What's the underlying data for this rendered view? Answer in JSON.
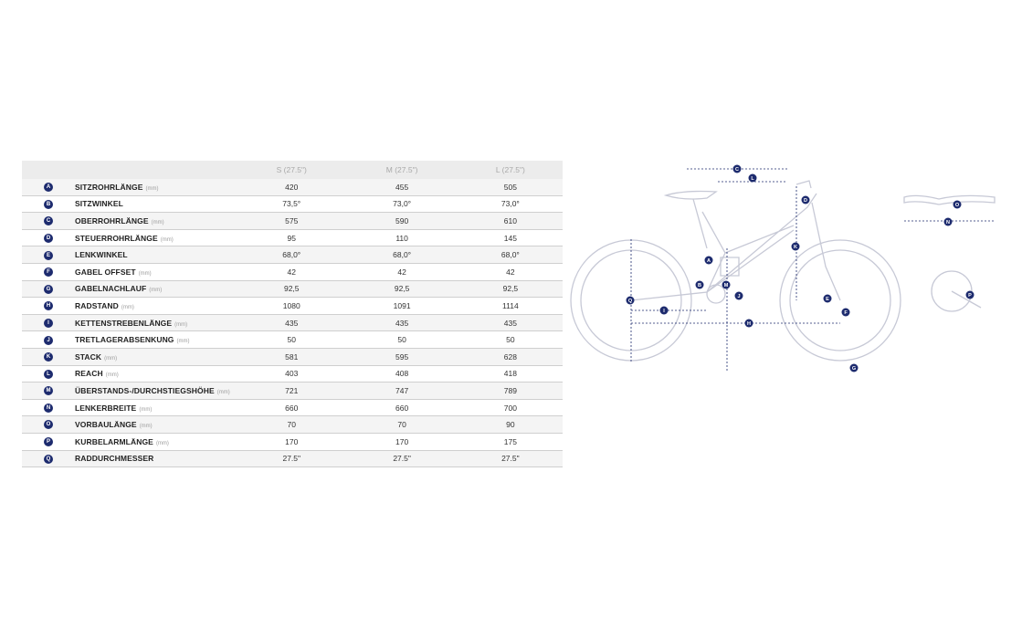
{
  "table": {
    "headers": [
      "",
      "",
      "S (27.5\")",
      "M (27.5\")",
      "L (27.5\")"
    ],
    "rows": [
      {
        "key": "A",
        "label": "SITZROHRLÄNGE",
        "unit": "(mm)",
        "values": [
          "420",
          "455",
          "505"
        ]
      },
      {
        "key": "B",
        "label": "SITZWINKEL",
        "unit": "",
        "values": [
          "73,5°",
          "73,0°",
          "73,0°"
        ]
      },
      {
        "key": "C",
        "label": "OBERROHRLÄNGE",
        "unit": "(mm)",
        "values": [
          "575",
          "590",
          "610"
        ]
      },
      {
        "key": "D",
        "label": "STEUERROHRLÄNGE",
        "unit": "(mm)",
        "values": [
          "95",
          "110",
          "145"
        ]
      },
      {
        "key": "E",
        "label": "LENKWINKEL",
        "unit": "",
        "values": [
          "68,0°",
          "68,0°",
          "68,0°"
        ]
      },
      {
        "key": "F",
        "label": "GABEL OFFSET",
        "unit": "(mm)",
        "values": [
          "42",
          "42",
          "42"
        ]
      },
      {
        "key": "G",
        "label": "GABELNACHLAUF",
        "unit": "(mm)",
        "values": [
          "92,5",
          "92,5",
          "92,5"
        ]
      },
      {
        "key": "H",
        "label": "RADSTAND",
        "unit": "(mm)",
        "values": [
          "1080",
          "1091",
          "1114"
        ]
      },
      {
        "key": "I",
        "label": "KETTENSTREBENLÄNGE",
        "unit": "(mm)",
        "values": [
          "435",
          "435",
          "435"
        ]
      },
      {
        "key": "J",
        "label": "TRETLAGERABSENKUNG",
        "unit": "(mm)",
        "values": [
          "50",
          "50",
          "50"
        ]
      },
      {
        "key": "K",
        "label": "STACK",
        "unit": "(mm)",
        "values": [
          "581",
          "595",
          "628"
        ]
      },
      {
        "key": "L",
        "label": "REACH",
        "unit": "(mm)",
        "values": [
          "403",
          "408",
          "418"
        ]
      },
      {
        "key": "M",
        "label": "ÜBERSTANDS-/DURCHSTIEGSHÖHE",
        "unit": "(mm)",
        "values": [
          "721",
          "747",
          "789"
        ]
      },
      {
        "key": "N",
        "label": "LENKERBREITE",
        "unit": "(mm)",
        "values": [
          "660",
          "660",
          "700"
        ]
      },
      {
        "key": "O",
        "label": "VORBAULÄNGE",
        "unit": "(mm)",
        "values": [
          "70",
          "70",
          "90"
        ]
      },
      {
        "key": "P",
        "label": "KURBELARMLÄNGE",
        "unit": "(mm)",
        "values": [
          "170",
          "170",
          "175"
        ]
      },
      {
        "key": "Q",
        "label": "RADDURCHMESSER",
        "unit": "",
        "values": [
          "27.5\"",
          "27.5\"",
          "27.5\""
        ]
      }
    ]
  },
  "diagram": {
    "line_color": "#c7c9d6",
    "dim_color": "#1d2b6e",
    "markers": [
      "C",
      "L",
      "D",
      "K",
      "A",
      "B",
      "M",
      "J",
      "E",
      "F",
      "Q",
      "I",
      "H",
      "G",
      "O",
      "N",
      "P"
    ]
  }
}
